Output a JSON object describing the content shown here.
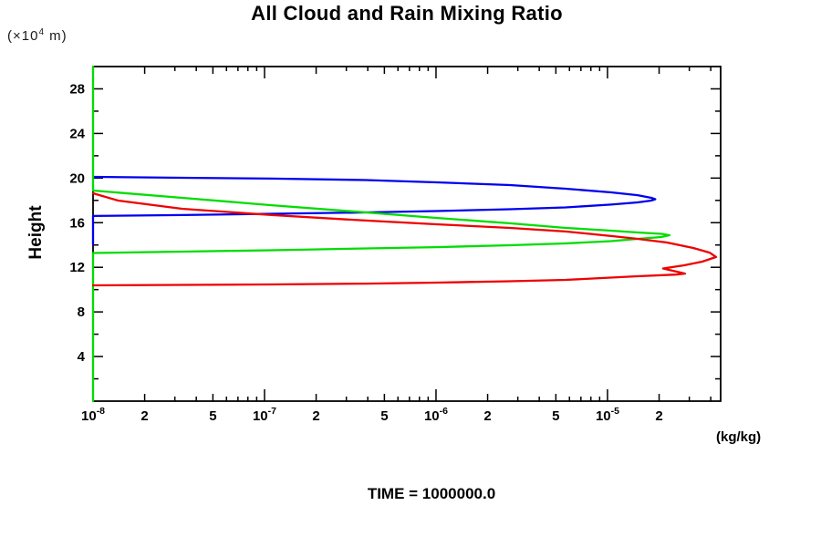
{
  "title": "All Cloud and Rain Mixing Ratio",
  "y_axis": {
    "label": "Height",
    "unit_prefix": "(×10",
    "unit_exp": "4",
    "unit_suffix": " m)"
  },
  "x_axis": {
    "unit_label": "(kg/kg)"
  },
  "footer": {
    "text": "TIME = 1000000.0"
  },
  "chart_data": {
    "type": "line",
    "title": "All Cloud and Rain Mixing Ratio",
    "xlabel_unit": "(kg/kg)",
    "ylabel": "Height",
    "y_unit": "x10^4 m",
    "x_scale": "log",
    "xlim": [
      1e-08,
      4.57e-05
    ],
    "ylim": [
      0,
      30
    ],
    "y_major_ticks": [
      4,
      8,
      12,
      16,
      20,
      24,
      28
    ],
    "y_minor_step": 2,
    "x_decade_exponents": [
      -8,
      -7,
      -6,
      -5
    ],
    "x_labeled_mantissas": [
      2,
      5
    ],
    "grid": false,
    "legend": "none",
    "annotation": "TIME = 1000000.0",
    "series": [
      {
        "name": "blue-mixing-ratio-profile",
        "color": "#0000ee",
        "points": [
          [
            1e-08,
            14.06
          ],
          [
            1e-08,
            16.6
          ],
          [
            3.3e-08,
            16.68
          ],
          [
            1.1e-07,
            16.8
          ],
          [
            3.9e-07,
            16.92
          ],
          [
            1e-06,
            17.04
          ],
          [
            2.7e-06,
            17.21
          ],
          [
            5.7e-06,
            17.37
          ],
          [
            1.05e-05,
            17.62
          ],
          [
            1.5e-05,
            17.82
          ],
          [
            1.8e-05,
            17.98
          ],
          [
            1.9e-05,
            18.11
          ],
          [
            1.8e-05,
            18.23
          ],
          [
            1.5e-05,
            18.47
          ],
          [
            1.05e-05,
            18.72
          ],
          [
            5.7e-06,
            19.05
          ],
          [
            2.7e-06,
            19.37
          ],
          [
            1e-06,
            19.62
          ],
          [
            3.9e-07,
            19.82
          ],
          [
            1.1e-07,
            19.95
          ],
          [
            3.3e-08,
            20.03
          ],
          [
            1e-08,
            20.11
          ]
        ]
      },
      {
        "name": "green-mixing-ratio-profile",
        "color": "#00dd00",
        "points": [
          [
            1e-08,
            0
          ],
          [
            1e-08,
            13.28
          ],
          [
            3.3e-08,
            13.41
          ],
          [
            1.1e-07,
            13.53
          ],
          [
            3.9e-07,
            13.69
          ],
          [
            1e-06,
            13.81
          ],
          [
            2.7e-06,
            13.98
          ],
          [
            5.7e-06,
            14.14
          ],
          [
            1.05e-05,
            14.35
          ],
          [
            1.5e-05,
            14.55
          ],
          [
            2.06e-05,
            14.71
          ],
          [
            2.3e-05,
            14.88
          ],
          [
            2.06e-05,
            15.0
          ],
          [
            1.5e-05,
            15.12
          ],
          [
            1.05e-05,
            15.29
          ],
          [
            5.7e-06,
            15.53
          ],
          [
            2.73e-06,
            15.94
          ],
          [
            1e-06,
            16.43
          ],
          [
            3.9e-07,
            16.92
          ],
          [
            1.1e-07,
            17.57
          ],
          [
            3.3e-08,
            18.23
          ],
          [
            1e-08,
            18.88
          ],
          [
            1e-08,
            30
          ]
        ]
      },
      {
        "name": "red-mixing-ratio-profile",
        "color": "#ee0000",
        "points": [
          [
            1e-08,
            10.38
          ],
          [
            3.3e-08,
            10.42
          ],
          [
            1.1e-07,
            10.46
          ],
          [
            3.9e-07,
            10.54
          ],
          [
            1e-06,
            10.63
          ],
          [
            2.7e-06,
            10.75
          ],
          [
            5.7e-06,
            10.87
          ],
          [
            1.5e-05,
            11.2
          ],
          [
            2.5e-05,
            11.35
          ],
          [
            2.83e-05,
            11.44
          ],
          [
            2.5e-05,
            11.62
          ],
          [
            2.11e-05,
            11.89
          ],
          [
            2.8e-05,
            12.18
          ],
          [
            3.57e-05,
            12.51
          ],
          [
            4.3e-05,
            12.92
          ],
          [
            3.94e-05,
            13.32
          ],
          [
            3.16e-05,
            13.73
          ],
          [
            2.22e-05,
            14.22
          ],
          [
            1.5e-05,
            14.55
          ],
          [
            1.05e-05,
            14.8
          ],
          [
            5.7e-06,
            15.21
          ],
          [
            2.7e-06,
            15.53
          ],
          [
            1e-06,
            15.86
          ],
          [
            3.9e-07,
            16.19
          ],
          [
            1.1e-07,
            16.68
          ],
          [
            3.3e-08,
            17.25
          ],
          [
            1.4e-08,
            17.98
          ],
          [
            1e-08,
            18.64
          ]
        ]
      }
    ]
  }
}
